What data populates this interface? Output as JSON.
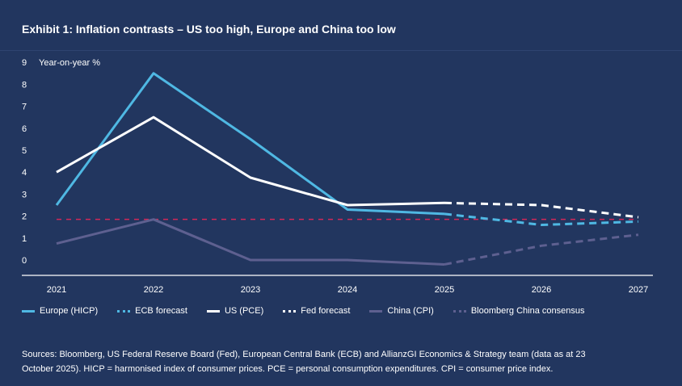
{
  "title": "Exhibit 1: Inflation contrasts – US too high, Europe and China too low",
  "chart_data": {
    "type": "line",
    "title": "Exhibit 1: Inflation contrasts – US too high, Europe and China too low",
    "ylabel": "Year-on-year %",
    "xlabel": "",
    "ylim": [
      -0.7,
      9
    ],
    "yticks": [
      "0",
      "1",
      "2",
      "3",
      "4",
      "5",
      "6",
      "7",
      "8",
      "9"
    ],
    "x": [
      "2021",
      "2022",
      "2023",
      "2024",
      "2025",
      "2026",
      "2027"
    ],
    "target_line": {
      "value": 1.85,
      "color": "#d2285a"
    },
    "series": [
      {
        "name": "Europe (HICP)",
        "color": "#4fb8e3",
        "dash": false,
        "x": [
          2021,
          2022,
          2023,
          2024,
          2025
        ],
        "values": [
          2.5,
          8.5,
          5.5,
          2.3,
          2.1
        ]
      },
      {
        "name": "ECB forecast",
        "color": "#4fb8e3",
        "dash": true,
        "x": [
          2025,
          2026,
          2027
        ],
        "values": [
          2.1,
          1.6,
          1.75
        ]
      },
      {
        "name": "US (PCE)",
        "color": "#ffffff",
        "dash": false,
        "x": [
          2021,
          2022,
          2023,
          2024,
          2025
        ],
        "values": [
          4.0,
          6.5,
          3.75,
          2.5,
          2.6
        ]
      },
      {
        "name": "Fed forecast",
        "color": "#ffffff",
        "dash": true,
        "x": [
          2025,
          2026,
          2027
        ],
        "values": [
          2.6,
          2.5,
          1.95
        ]
      },
      {
        "name": "China (CPI)",
        "color": "#5e6090",
        "dash": false,
        "x": [
          2021,
          2022,
          2023,
          2024,
          2025
        ],
        "values": [
          0.75,
          1.85,
          0,
          0,
          -0.2
        ]
      },
      {
        "name": "Bloomberg China consensus",
        "color": "#5e6090",
        "dash": true,
        "x": [
          2025,
          2026,
          2027
        ],
        "values": [
          -0.2,
          0.65,
          1.15
        ]
      }
    ]
  },
  "footer": {
    "line1": "Sources: Bloomberg, US Federal Reserve Board (Fed), European Central Bank (ECB) and AllianzGI Economics & Strategy team (data as at 23",
    "line2": "October 2025). HICP = harmonised index of consumer prices. PCE = personal consumption expenditures. CPI = consumer price index."
  }
}
